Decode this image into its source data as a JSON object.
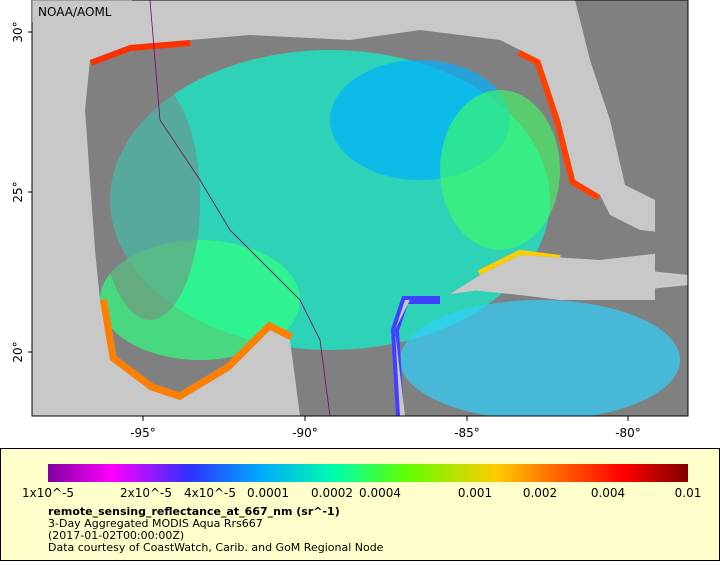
{
  "map": {
    "credit": "NOAA/AOML",
    "lat_labels": [
      "30°",
      "25°",
      "20°"
    ],
    "lon_labels": [
      "-95°",
      "-90°",
      "-85°",
      "-80°"
    ]
  },
  "legend": {
    "ticks": [
      "1x10^-5",
      "2x10^-5",
      "4x10^-5",
      "0.0001",
      "0.0002",
      "0.0004",
      "0.001",
      "0.002",
      "0.004",
      "0.01"
    ],
    "title": "remote_sensing_reflectance_at_667_nm (sr^-1)",
    "lines": [
      "3-Day Aggregated MODIS Aqua Rrs667",
      "(2017-01-02T00:00:00Z)",
      "Data courtesy of CoastWatch, Carib. and GoM Regional Node"
    ]
  }
}
